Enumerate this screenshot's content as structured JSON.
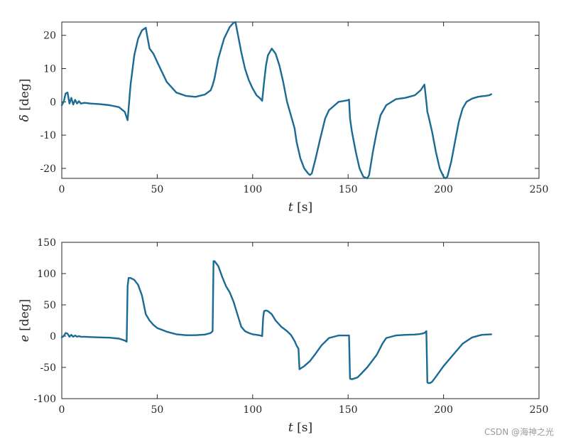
{
  "watermark": "CSDN @海神之光",
  "colors": {
    "line": "#1b6a94",
    "axis": "#262626"
  },
  "chart_data": [
    {
      "type": "line",
      "xlabel_var": "t",
      "xlabel_unit": "[s]",
      "ylabel_var": "δ",
      "ylabel_unit": "[deg]",
      "xlim": [
        0,
        250
      ],
      "ylim": [
        -23,
        24
      ],
      "xticks": [
        0,
        50,
        100,
        150,
        200,
        250
      ],
      "yticks": [
        -20,
        -10,
        0,
        10,
        20
      ],
      "grid": false,
      "series": [
        {
          "x": [
            0,
            1,
            2,
            3,
            4,
            5,
            6,
            7,
            8,
            9,
            10,
            12,
            15,
            20,
            25,
            30,
            33,
            34.5,
            35,
            36,
            38,
            40,
            42,
            44,
            45,
            46,
            48,
            50,
            55,
            60,
            65,
            70,
            75,
            78,
            79,
            80,
            82,
            85,
            88,
            90,
            91,
            92,
            94,
            96,
            98,
            100,
            102,
            104,
            105,
            106,
            107,
            108,
            110,
            112,
            114,
            116,
            118,
            120,
            122,
            123,
            125,
            127,
            129,
            130,
            131,
            133,
            135,
            138,
            140,
            145,
            150,
            150.5,
            151,
            152,
            154,
            156,
            158,
            160,
            161,
            163,
            165,
            167,
            170,
            175,
            180,
            185,
            188,
            190,
            191,
            191.5,
            192,
            194,
            196,
            198,
            200,
            201,
            202,
            204,
            206,
            208,
            210,
            212,
            215,
            218,
            220,
            222,
            224,
            225
          ],
          "y": [
            -1,
            0,
            2.5,
            2.8,
            -0.5,
            1.2,
            -0.8,
            0.6,
            -0.5,
            0.2,
            -0.5,
            -0.3,
            -0.5,
            -0.7,
            -1.0,
            -1.6,
            -3,
            -5.5,
            -2,
            5,
            14,
            19,
            21.5,
            22.3,
            19,
            16,
            14.5,
            12,
            6,
            2.8,
            1.8,
            1.5,
            2.2,
            3.5,
            5,
            7,
            13,
            19,
            22.5,
            23.8,
            24,
            21,
            15,
            10,
            6.5,
            4,
            2,
            1,
            0.3,
            6,
            11,
            14,
            16,
            14.5,
            11,
            6,
            0,
            -4,
            -8,
            -12,
            -17,
            -20,
            -21.5,
            -22,
            -21.5,
            -17,
            -12,
            -5,
            -2.5,
            0,
            0.5,
            0.7,
            -5,
            -9,
            -15,
            -20,
            -22.5,
            -23,
            -22,
            -15,
            -9,
            -4,
            -1,
            0.8,
            1.2,
            2,
            3.5,
            5.2,
            0,
            -3,
            -4,
            -9,
            -15,
            -20,
            -22.5,
            -23,
            -22.5,
            -18,
            -12,
            -6,
            -2,
            0,
            1,
            1.5,
            1.7,
            1.8,
            2.0,
            2.3
          ]
        }
      ]
    },
    {
      "type": "line",
      "xlabel_var": "t",
      "xlabel_unit": "[s]",
      "ylabel_var": "e",
      "ylabel_unit": "[deg]",
      "xlim": [
        0,
        250
      ],
      "ylim": [
        -100,
        150
      ],
      "xticks": [
        0,
        50,
        100,
        150,
        200,
        250
      ],
      "yticks": [
        -100,
        -50,
        0,
        50,
        100,
        150
      ],
      "grid": false,
      "series": [
        {
          "x": [
            0,
            1,
            2,
            3,
            4,
            5,
            6,
            7,
            8,
            9,
            10,
            12,
            15,
            20,
            25,
            30,
            33,
            34,
            34.5,
            35,
            36,
            38,
            40,
            42,
            44,
            46,
            48,
            50,
            55,
            60,
            65,
            70,
            75,
            78,
            79,
            79.5,
            80,
            82,
            84,
            86,
            88,
            90,
            92,
            94,
            96,
            98,
            100,
            102,
            104,
            105,
            105.5,
            106,
            107,
            108,
            110,
            112,
            115,
            118,
            120,
            122,
            123,
            124,
            124.5,
            125,
            127,
            130,
            133,
            136,
            140,
            145,
            150,
            150.5,
            151,
            152,
            155,
            160,
            165,
            168,
            170,
            175,
            180,
            185,
            188,
            190,
            191,
            191.5,
            192,
            193,
            194,
            196,
            200,
            205,
            210,
            215,
            220,
            225
          ],
          "y": [
            -2,
            0,
            5,
            4,
            -1,
            2,
            -1,
            1,
            -1,
            0,
            -1,
            -1,
            -1.5,
            -2,
            -2.5,
            -4,
            -7,
            -9,
            80,
            93,
            93,
            90,
            82,
            65,
            35,
            25,
            18,
            13,
            7,
            3,
            1.5,
            1.5,
            2.5,
            5,
            8,
            120,
            120,
            112,
            95,
            80,
            70,
            55,
            35,
            15,
            8,
            5,
            3,
            2,
            1,
            0,
            30,
            40,
            41,
            40,
            35,
            25,
            15,
            8,
            2,
            -8,
            -15,
            -20,
            -53,
            -52,
            -48,
            -40,
            -28,
            -15,
            -3,
            1,
            1,
            1,
            -68,
            -69,
            -66,
            -50,
            -30,
            -12,
            -3,
            1,
            2,
            2.5,
            3.5,
            5,
            8,
            -74,
            -75,
            -75,
            -73,
            -65,
            -48,
            -30,
            -12,
            -2,
            2,
            3
          ]
        }
      ]
    }
  ]
}
